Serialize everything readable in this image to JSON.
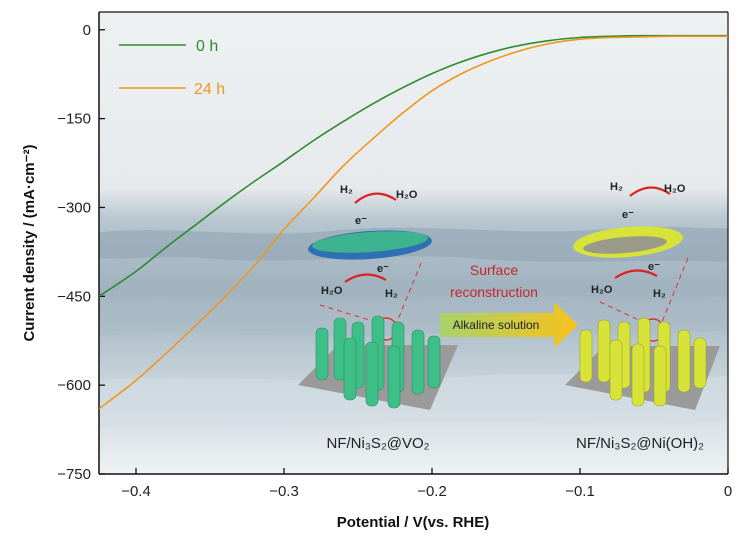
{
  "chart_data": {
    "type": "line",
    "xlabel": "Potential / V(vs. RHE)",
    "ylabel": "Current density / (mA·cm⁻²)",
    "xlim": [
      -0.425,
      0
    ],
    "ylim": [
      -750,
      30
    ],
    "xticks": [
      -0.4,
      -0.3,
      -0.2,
      -0.1,
      0
    ],
    "xtick_labels": [
      "−0.4",
      "−0.3",
      "−0.2",
      "−0.1",
      "0"
    ],
    "yticks": [
      0,
      -150,
      -300,
      -450,
      -600,
      -750
    ],
    "ytick_labels": [
      "0",
      "−150",
      "−300",
      "−450",
      "−600",
      "−750"
    ],
    "grid": false,
    "legend_position": "top-left",
    "series": [
      {
        "name": "0 h",
        "color": "#2e8b2e",
        "x": [
          -0.425,
          -0.4,
          -0.38,
          -0.36,
          -0.34,
          -0.32,
          -0.3,
          -0.28,
          -0.26,
          -0.24,
          -0.22,
          -0.2,
          -0.18,
          -0.16,
          -0.14,
          -0.12,
          -0.1,
          -0.08,
          -0.06,
          -0.04,
          -0.02,
          0
        ],
        "y": [
          -450,
          -408,
          -368,
          -330,
          -292,
          -256,
          -222,
          -187,
          -155,
          -125,
          -98,
          -74,
          -54,
          -38,
          -26,
          -18,
          -13,
          -11,
          -10,
          -10,
          -10,
          -10
        ]
      },
      {
        "name": "24 h",
        "color": "#f0961e",
        "x": [
          -0.425,
          -0.4,
          -0.38,
          -0.36,
          -0.34,
          -0.32,
          -0.3,
          -0.28,
          -0.26,
          -0.24,
          -0.22,
          -0.2,
          -0.18,
          -0.16,
          -0.14,
          -0.12,
          -0.1,
          -0.08,
          -0.06,
          -0.04,
          -0.02,
          0
        ],
        "y": [
          -640,
          -592,
          -547,
          -500,
          -451,
          -398,
          -337,
          -284,
          -230,
          -184,
          -141,
          -103,
          -74,
          -52,
          -35,
          -23,
          -16,
          -13,
          -12,
          -11,
          -11,
          -11
        ]
      }
    ]
  },
  "annotations": {
    "left_sample": {
      "label": "NF/Ni₃S₂@VO₂",
      "h2_top": "H₂",
      "h2o_top": "H₂O",
      "e_top": "e⁻",
      "e_bottom": "e⁻",
      "h2o_bottom": "H₂O",
      "h2_bottom": "H₂"
    },
    "right_sample": {
      "label": "NF/Ni₃S₂@Ni(OH)₂",
      "h2_top": "H₂",
      "h2o_top": "H₂O",
      "e_top": "e⁻",
      "e_bottom": "e⁻",
      "h2o_bottom": "H₂O",
      "h2_bottom": "H₂"
    },
    "process_line1": "Surface",
    "process_line2": "reconstruction",
    "arrow_label": "Alkaline solution"
  },
  "colors": {
    "axis": "#111111",
    "annotation_red": "#c8252b",
    "nanorod_left": "#3fbf88",
    "nanorod_right": "#d8e33a",
    "substrate": "#9a9a9a",
    "arrow": "#f2c21a",
    "water": "#b9c9d3"
  }
}
